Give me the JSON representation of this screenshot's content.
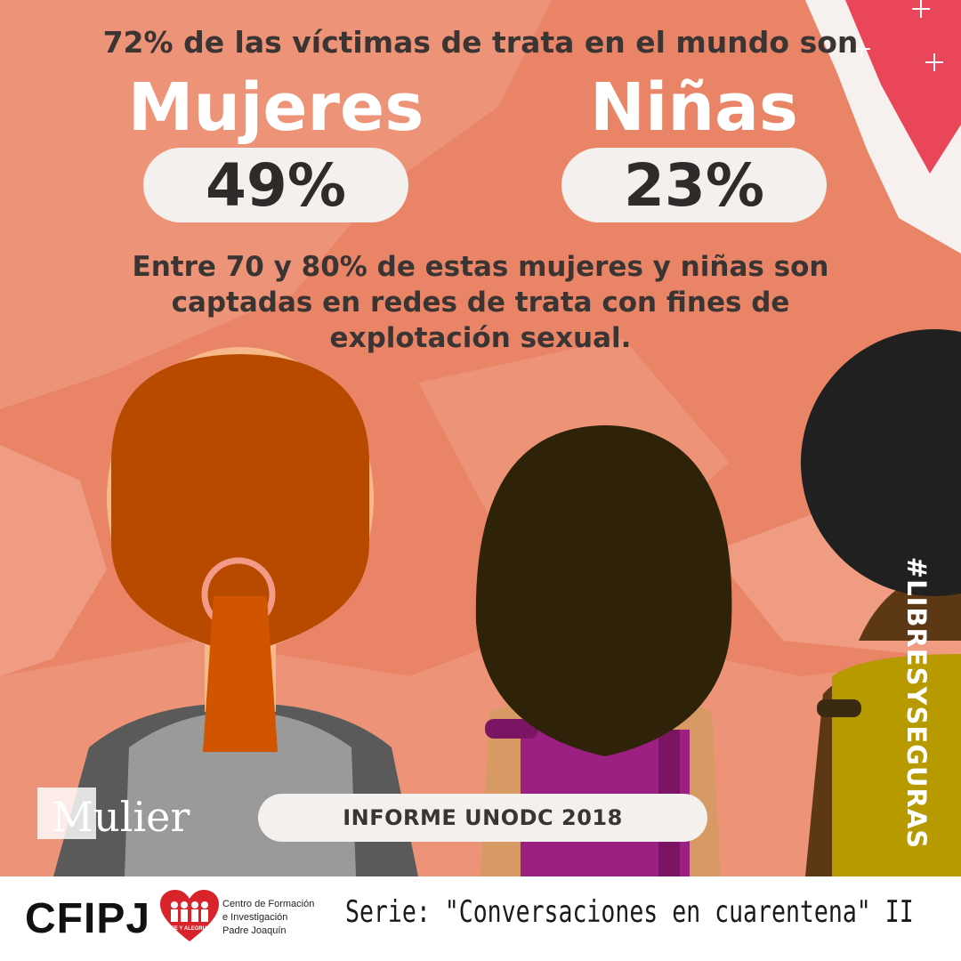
{
  "headline": "72% de las víctimas de trata en el mundo son",
  "categories": [
    {
      "label": "Mujeres",
      "value": "49%"
    },
    {
      "label": "Niñas",
      "value": "23%"
    }
  ],
  "subtext": [
    "Entre 70 y 80% de estas mujeres y niñas son",
    "captadas en redes de trata con fines de",
    "explotación sexual."
  ],
  "source": "INFORME UNODC 2018",
  "logo_mulier": "Mulier",
  "hashtag": "#LIBRESYSEGURAS",
  "footer": {
    "org_acronym": "CFIPJ",
    "heart_badge": "FE Y ALEGRIA",
    "org_name_lines": [
      "Centro de Formación",
      "e Investigación",
      "Padre Joaquín"
    ],
    "series_title": "Serie: \"Conversaciones en cuarentena\" II"
  },
  "colors": {
    "background": "#e98467",
    "pill": "#f3f0ee",
    "text_dark": "#3a3433",
    "heart": "#d8232a"
  }
}
